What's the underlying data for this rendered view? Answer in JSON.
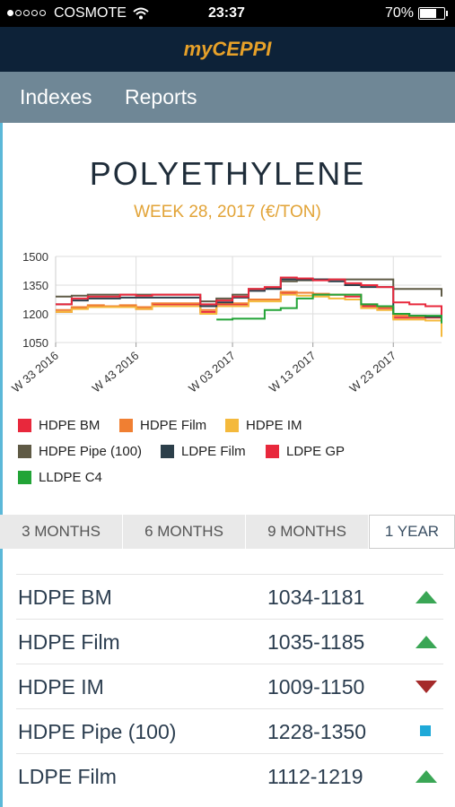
{
  "status_bar": {
    "carrier": "COSMOTE",
    "time": "23:37",
    "battery": "70%",
    "battery_level": 0.7
  },
  "app_title": "myCEPPI",
  "nav": {
    "tabs": [
      "Indexes",
      "Reports"
    ]
  },
  "main": {
    "title": "POLYETHYLENE",
    "subtitle": "WEEK 28, 2017 (€/TON)"
  },
  "chart_data": {
    "type": "line",
    "x": [
      "W 33 2016",
      "W 35 2016",
      "W 37 2016",
      "W 39 2016",
      "W 41 2016",
      "W 43 2016",
      "W 45 2016",
      "W 47 2016",
      "W 49 2016",
      "W 51 2016",
      "W 01 2017",
      "W 03 2017",
      "W 05 2017",
      "W 07 2017",
      "W 09 2017",
      "W 11 2017",
      "W 13 2017",
      "W 15 2017",
      "W 17 2017",
      "W 19 2017",
      "W 21 2017",
      "W 23 2017",
      "W 25 2017",
      "W 27 2017",
      "W 28 2017"
    ],
    "x_tick_labels": [
      "W 33 2016",
      "W 43 2016",
      "W 03 2017",
      "W 13 2017",
      "W 23 2017"
    ],
    "yticks": [
      1050,
      1200,
      1350,
      1500
    ],
    "ylim": [
      1050,
      1500
    ],
    "grid": true,
    "series": [
      {
        "name": "HDPE BM",
        "color": "#e8283c",
        "values": [
          1210,
          1230,
          1240,
          1240,
          1240,
          1225,
          1250,
          1250,
          1250,
          1210,
          1250,
          1250,
          1275,
          1275,
          1310,
          1310,
          1300,
          1300,
          1290,
          1240,
          1230,
          1180,
          1180,
          1180,
          1110
        ]
      },
      {
        "name": "HDPE Film",
        "color": "#f07f32",
        "values": [
          1220,
          1235,
          1245,
          1240,
          1245,
          1235,
          1255,
          1255,
          1255,
          1220,
          1255,
          1255,
          1275,
          1275,
          1315,
          1310,
          1305,
          1300,
          1300,
          1250,
          1235,
          1190,
          1185,
          1185,
          1110
        ]
      },
      {
        "name": "HDPE IM",
        "color": "#f4b93c",
        "values": [
          1210,
          1225,
          1235,
          1235,
          1235,
          1225,
          1240,
          1240,
          1240,
          1200,
          1240,
          1240,
          1265,
          1265,
          1300,
          1295,
          1290,
          1280,
          1275,
          1230,
          1220,
          1170,
          1170,
          1165,
          1080
        ]
      },
      {
        "name": "HDPE Pipe (100)",
        "color": "#5f5a45",
        "values": [
          1290,
          1295,
          1300,
          1300,
          1300,
          1300,
          1300,
          1300,
          1300,
          1265,
          1280,
          1300,
          1330,
          1335,
          1370,
          1375,
          1380,
          1380,
          1380,
          1380,
          1380,
          1330,
          1330,
          1330,
          1290
        ]
      },
      {
        "name": "LDPE Film",
        "color": "#2c3f4a",
        "values": [
          1250,
          1270,
          1280,
          1280,
          1285,
          1285,
          1285,
          1285,
          1285,
          1240,
          1260,
          1285,
          1320,
          1330,
          1380,
          1380,
          1380,
          1370,
          1350,
          1340,
          1340,
          1200,
          1190,
          1185,
          1160
        ]
      },
      {
        "name": "LDPE GP",
        "color": "#e8283c",
        "values": [
          1250,
          1280,
          1290,
          1290,
          1300,
          1295,
          1300,
          1300,
          1300,
          1250,
          1270,
          1290,
          1330,
          1340,
          1390,
          1385,
          1375,
          1380,
          1360,
          1350,
          1340,
          1260,
          1250,
          1240,
          1160
        ]
      },
      {
        "name": "LLDPE C4",
        "color": "#22a437",
        "values": [
          null,
          null,
          null,
          null,
          null,
          null,
          null,
          null,
          null,
          null,
          1170,
          1175,
          1175,
          1220,
          1230,
          1280,
          1300,
          1300,
          1300,
          1250,
          1240,
          1200,
          1190,
          1190,
          1150
        ]
      }
    ]
  },
  "periods": {
    "items": [
      "3 MONTHS",
      "6 MONTHS",
      "9 MONTHS",
      "1 YEAR"
    ],
    "selected": "1 YEAR"
  },
  "table": {
    "rows": [
      {
        "name": "HDPE BM",
        "range": "1034-1181",
        "trend": "up"
      },
      {
        "name": "HDPE Film",
        "range": "1035-1185",
        "trend": "up"
      },
      {
        "name": "HDPE IM",
        "range": "1009-1150",
        "trend": "down"
      },
      {
        "name": "HDPE Pipe (100)",
        "range": "1228-1350",
        "trend": "flat"
      },
      {
        "name": "LDPE Film",
        "range": "1112-1219",
        "trend": "up"
      }
    ]
  },
  "colors": {
    "header_bg": "#0d2238",
    "logo": "#e7a129",
    "nav_bg": "#6f8796",
    "accent": "#e2a336",
    "trend_up": "#3aa655",
    "trend_down": "#a52a2a",
    "trend_flat": "#1fa9d8"
  }
}
